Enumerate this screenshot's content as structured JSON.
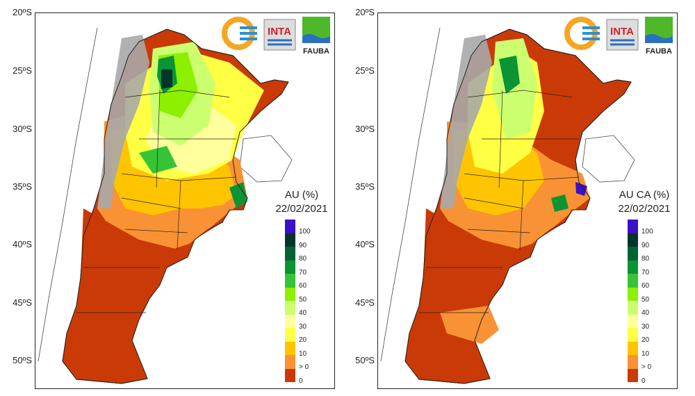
{
  "latitude_labels": [
    "20ºS",
    "25ºS",
    "30ºS",
    "35ºS",
    "40ºS",
    "45ºS",
    "50ºS"
  ],
  "logos": {
    "inta": "INTA",
    "fauba": "FAUBA"
  },
  "legend": {
    "ticks": [
      "100",
      "90",
      "80",
      "70",
      "60",
      "50",
      "40",
      "30",
      "20",
      "10",
      "> 0",
      "0"
    ],
    "colors": [
      "#3a10c8",
      "#03352a",
      "#046333",
      "#0a9434",
      "#36c436",
      "#8cf000",
      "#ccff70",
      "#ffff9c",
      "#ffff44",
      "#ffc400",
      "#f99234",
      "#c93a06"
    ]
  },
  "panels": [
    {
      "title": "AU (%)",
      "date": "22/02/2021"
    },
    {
      "title": "AU CA (%)",
      "date": "22/02/2021"
    }
  ]
}
